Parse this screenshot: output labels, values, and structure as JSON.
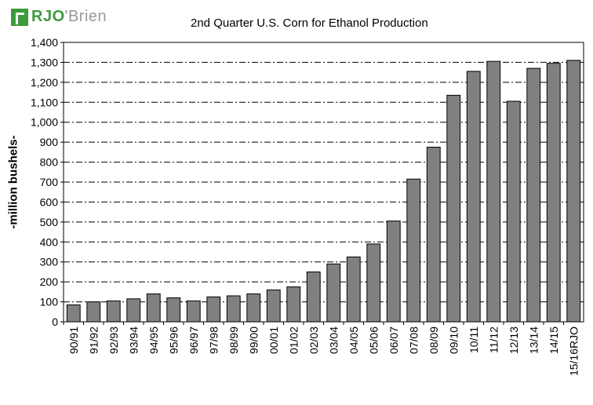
{
  "logo": {
    "brand": "RJO",
    "suffix": "'Brien"
  },
  "chart_data": {
    "type": "bar",
    "title": "2nd Quarter U.S. Corn for Ethanol Production",
    "xlabel": "",
    "ylabel": "-million bushels-",
    "ylim": [
      0,
      1400
    ],
    "yticks": [
      0,
      100,
      200,
      300,
      400,
      500,
      600,
      700,
      800,
      900,
      1000,
      1100,
      1200,
      1300,
      1400
    ],
    "ytick_labels": [
      "0",
      "100",
      "200",
      "300",
      "400",
      "500",
      "600",
      "700",
      "800",
      "900",
      "1,000",
      "1,100",
      "1,200",
      "1,300",
      "1,400"
    ],
    "grid": "horizontal dash-dot",
    "bar_color": "#808080",
    "categories": [
      "90/91",
      "91/92",
      "92/93",
      "93/94",
      "94/95",
      "95/96",
      "96/97",
      "97/98",
      "98/99",
      "99/00",
      "00/01",
      "01/02",
      "02/03",
      "03/04",
      "04/05",
      "05/06",
      "06/07",
      "07/08",
      "08/09",
      "09/10",
      "10/11",
      "11/12",
      "12/13",
      "13/14",
      "14/15",
      "15/16RJO"
    ],
    "values": [
      85,
      100,
      105,
      115,
      140,
      120,
      105,
      125,
      130,
      140,
      160,
      175,
      250,
      290,
      325,
      390,
      505,
      715,
      875,
      1135,
      1255,
      1305,
      1105,
      1270,
      1295,
      1310
    ]
  }
}
